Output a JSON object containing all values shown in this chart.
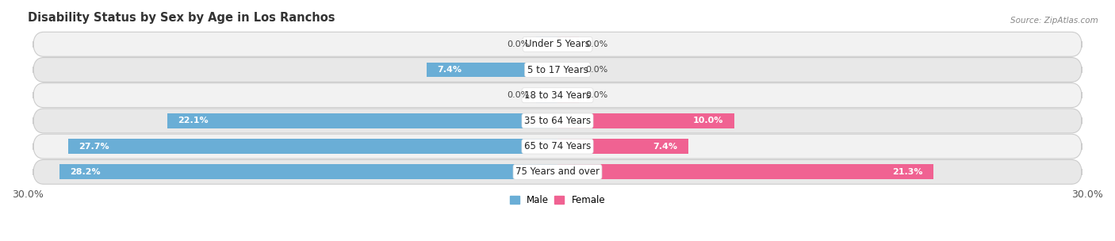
{
  "title": "Disability Status by Sex by Age in Los Ranchos",
  "source": "Source: ZipAtlas.com",
  "categories": [
    "Under 5 Years",
    "5 to 17 Years",
    "18 to 34 Years",
    "35 to 64 Years",
    "65 to 74 Years",
    "75 Years and over"
  ],
  "male_values": [
    0.0,
    7.4,
    0.0,
    22.1,
    27.7,
    28.2
  ],
  "female_values": [
    0.0,
    0.0,
    0.0,
    10.0,
    7.4,
    21.3
  ],
  "male_color": "#6aaed6",
  "female_color": "#f06292",
  "male_color_light": "#b8d8ee",
  "female_color_light": "#f8bbd0",
  "row_bg_color_odd": "#f2f2f2",
  "row_bg_color_even": "#e8e8e8",
  "x_min": -30.0,
  "x_max": 30.0,
  "legend_male": "Male",
  "legend_female": "Female",
  "title_fontsize": 10.5,
  "label_fontsize": 8.5,
  "tick_fontsize": 9,
  "zero_stub": 1.2
}
